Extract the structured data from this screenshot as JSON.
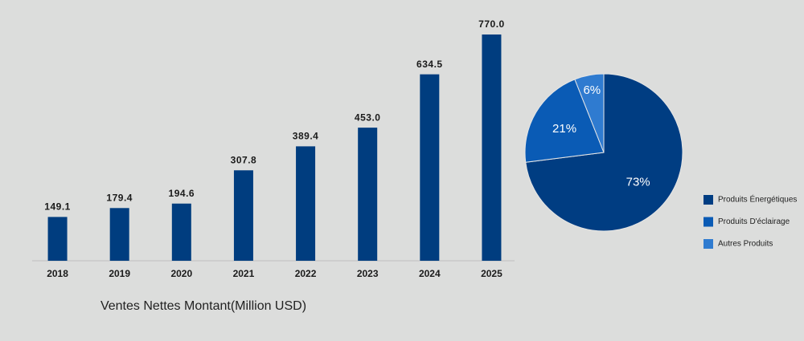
{
  "chart_data": [
    {
      "type": "bar",
      "title": "Ventes Nettes Montant(Million USD)",
      "categories": [
        "2018",
        "2019",
        "2020",
        "2021",
        "2022",
        "2023",
        "2024",
        "2025"
      ],
      "values": [
        149.1,
        179.4,
        194.6,
        307.8,
        389.4,
        453.0,
        634.5,
        770.0
      ],
      "value_labels": [
        "149.1",
        "179.4",
        "194.6",
        "307.8",
        "389.4",
        "453.0",
        "634.5",
        "770.0"
      ],
      "color": "#003d7f"
    },
    {
      "type": "pie",
      "categories": [
        "Produits Énergétiques",
        "Produits D'éclairage",
        "Autres Produits"
      ],
      "values": [
        73,
        21,
        6
      ],
      "value_labels": [
        "73%",
        "21%",
        "6%"
      ],
      "colors": [
        "#003d82",
        "#0a5bb5",
        "#2f7bd0"
      ]
    }
  ]
}
